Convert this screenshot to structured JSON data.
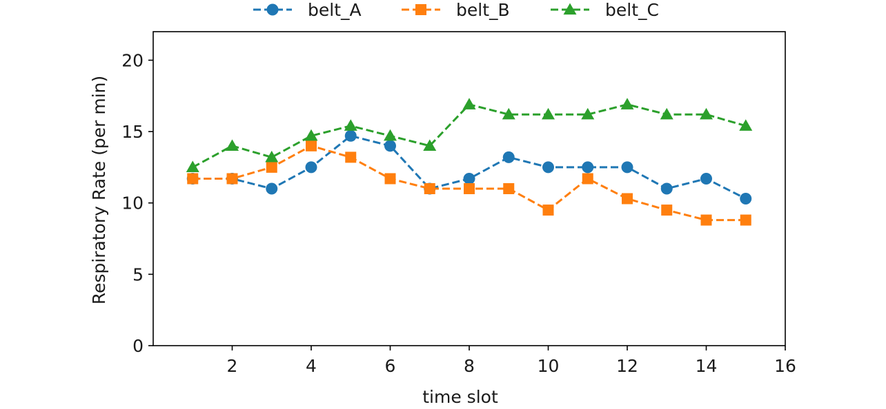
{
  "chart_data": {
    "type": "line",
    "title": "",
    "xlabel": "time slot",
    "ylabel": "Respiratory Rate (per min)",
    "xlim": [
      0,
      16
    ],
    "ylim": [
      0,
      22
    ],
    "xticks": [
      2,
      4,
      6,
      8,
      10,
      12,
      14,
      16
    ],
    "yticks": [
      0,
      5,
      10,
      15,
      20
    ],
    "grid": false,
    "legend_position": "top-center",
    "x": [
      1,
      2,
      3,
      4,
      5,
      6,
      7,
      8,
      9,
      10,
      11,
      12,
      13,
      14,
      15
    ],
    "series": [
      {
        "name": "belt_A",
        "color": "#1f77b4",
        "marker": "circle",
        "linestyle": "dashed",
        "values": [
          11.7,
          11.7,
          11.0,
          12.5,
          14.7,
          14.0,
          11.0,
          11.7,
          13.2,
          12.5,
          12.5,
          12.5,
          11.0,
          11.7,
          10.3
        ]
      },
      {
        "name": "belt_B",
        "color": "#ff7f0e",
        "marker": "square",
        "linestyle": "dashed",
        "values": [
          11.7,
          11.7,
          12.5,
          14.0,
          13.2,
          11.7,
          11.0,
          11.0,
          11.0,
          9.5,
          11.7,
          10.3,
          9.5,
          8.8,
          8.8
        ]
      },
      {
        "name": "belt_C",
        "color": "#2ca02c",
        "marker": "triangle",
        "linestyle": "dashed",
        "values": [
          12.5,
          14.0,
          13.2,
          14.7,
          15.4,
          14.7,
          14.0,
          16.9,
          16.2,
          16.2,
          16.2,
          16.9,
          16.2,
          16.2,
          15.4
        ]
      }
    ]
  }
}
